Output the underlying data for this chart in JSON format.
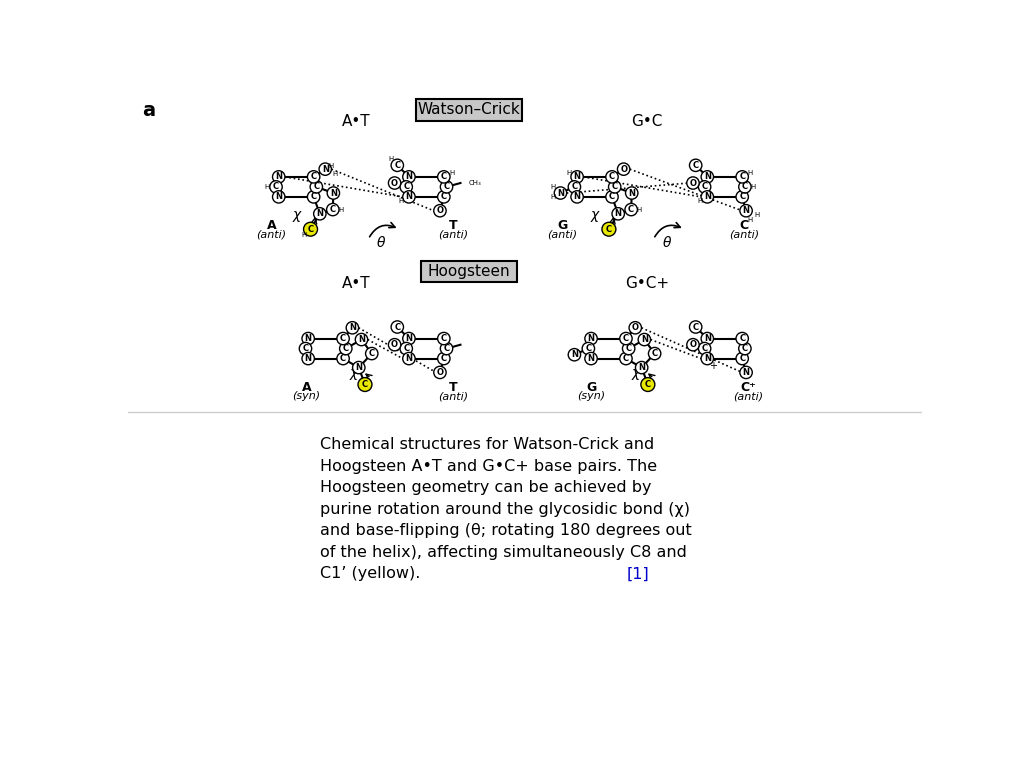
{
  "title_label": "a",
  "watson_crick_label": "Watson–Crick",
  "hoogsteen_label": "Hoogsteen",
  "wc_AT_label": "A•T",
  "wc_GC_label": "G•C",
  "hg_AT_label": "A•T",
  "hg_GC_label": "G•C+",
  "caption_line1": "Chemical structures for Watson-Crick and",
  "caption_line2": "Hoogsteen A•T and G•C+ base pairs. The",
  "caption_line3": "Hoogsteen geometry can be achieved by",
  "caption_line4": "purine rotation around the glycosidic bond (χ)",
  "caption_line5": "and base-flipping (θ; rotating 180 degrees out",
  "caption_line6": "of the helix), affecting simultaneously C8 and",
  "caption_line7": "C1’ (yellow).",
  "citation": "[1]",
  "bg_color": "#ffffff",
  "text_color": "#000000",
  "yellow_color": "#e8e800",
  "box_color": "#c8c8c8",
  "link_color": "#0000cc"
}
